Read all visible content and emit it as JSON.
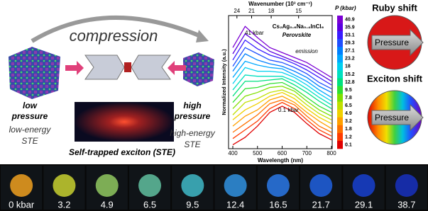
{
  "left": {
    "title": "compression",
    "low": [
      "low",
      "pressure"
    ],
    "low_ste": [
      "low-energy",
      "STE"
    ],
    "high": [
      "high",
      "pressure"
    ],
    "high_ste": [
      "high-energy",
      "STE"
    ],
    "ste_caption": "Self-trapped exciton (STE)"
  },
  "chart_data": {
    "type": "line",
    "xlabel": "Wavelength (nm)",
    "ylabel": "Normalized Intensity (a.u.)",
    "x2label": "Wavenumber (10³ cm⁻¹)",
    "colorbar_title": "P (kbar)",
    "annotations": [
      "41 kbar",
      "0.1 kbar",
      "Cs₂Ag₀.₆Na₀.₄InCl₆",
      "Perovskite",
      "emission"
    ],
    "x": [
      400,
      450,
      500,
      550,
      600,
      650,
      700,
      750,
      800
    ],
    "xlim": [
      400,
      820
    ],
    "xticks": [
      400,
      500,
      600,
      700,
      800
    ],
    "x2ticks": [
      24,
      21,
      18,
      15
    ],
    "ylim": [
      0,
      1
    ],
    "series": [
      {
        "name": "40.9",
        "color": "#7b00d4",
        "values": [
          0.8,
          0.97,
          0.88,
          0.8,
          0.76,
          0.72,
          0.68,
          0.62,
          0.56
        ]
      },
      {
        "name": "35.9",
        "color": "#5a00e0",
        "values": [
          0.75,
          0.91,
          0.84,
          0.77,
          0.73,
          0.69,
          0.65,
          0.59,
          0.53
        ]
      },
      {
        "name": "33.1",
        "color": "#3a1cff",
        "values": [
          0.7,
          0.86,
          0.79,
          0.74,
          0.71,
          0.67,
          0.62,
          0.56,
          0.5
        ]
      },
      {
        "name": "29.3",
        "color": "#1f4fff",
        "values": [
          0.65,
          0.8,
          0.75,
          0.7,
          0.68,
          0.64,
          0.59,
          0.52,
          0.47
        ]
      },
      {
        "name": "27.1",
        "color": "#0080ff",
        "values": [
          0.61,
          0.75,
          0.7,
          0.67,
          0.65,
          0.61,
          0.56,
          0.49,
          0.44
        ]
      },
      {
        "name": "23.2",
        "color": "#00a8ff",
        "values": [
          0.56,
          0.69,
          0.66,
          0.64,
          0.63,
          0.58,
          0.53,
          0.46,
          0.4
        ]
      },
      {
        "name": "18",
        "color": "#00d0f0",
        "values": [
          0.51,
          0.64,
          0.61,
          0.61,
          0.6,
          0.56,
          0.5,
          0.43,
          0.37
        ]
      },
      {
        "name": "15.2",
        "color": "#00e0c0",
        "values": [
          0.46,
          0.58,
          0.57,
          0.57,
          0.57,
          0.53,
          0.47,
          0.4,
          0.34
        ]
      },
      {
        "name": "12.8",
        "color": "#00e080",
        "values": [
          0.41,
          0.53,
          0.53,
          0.54,
          0.55,
          0.5,
          0.44,
          0.37,
          0.31
        ]
      },
      {
        "name": "9.5",
        "color": "#30e030",
        "values": [
          0.36,
          0.47,
          0.48,
          0.51,
          0.52,
          0.47,
          0.4,
          0.33,
          0.28
        ]
      },
      {
        "name": "7.8",
        "color": "#80e000",
        "values": [
          0.31,
          0.41,
          0.44,
          0.48,
          0.49,
          0.45,
          0.37,
          0.3,
          0.25
        ]
      },
      {
        "name": "6.5",
        "color": "#c0e000",
        "values": [
          0.26,
          0.36,
          0.39,
          0.44,
          0.46,
          0.42,
          0.34,
          0.27,
          0.22
        ]
      },
      {
        "name": "4.9",
        "color": "#f0d000",
        "values": [
          0.22,
          0.3,
          0.35,
          0.41,
          0.44,
          0.39,
          0.31,
          0.24,
          0.19
        ]
      },
      {
        "name": "3.2",
        "color": "#ffa000",
        "values": [
          0.17,
          0.25,
          0.3,
          0.38,
          0.41,
          0.36,
          0.28,
          0.21,
          0.15
        ]
      },
      {
        "name": "1.8",
        "color": "#ff7000",
        "values": [
          0.12,
          0.19,
          0.26,
          0.35,
          0.38,
          0.34,
          0.25,
          0.17,
          0.12
        ]
      },
      {
        "name": "1.2",
        "color": "#ff3c00",
        "values": [
          0.07,
          0.14,
          0.21,
          0.31,
          0.36,
          0.31,
          0.22,
          0.14,
          0.09
        ]
      },
      {
        "name": "0.1",
        "color": "#e00000",
        "values": [
          0.02,
          0.08,
          0.17,
          0.28,
          0.33,
          0.28,
          0.19,
          0.11,
          0.06
        ]
      }
    ]
  },
  "right": {
    "ruby": "Ruby shift",
    "exciton": "Exciton shift",
    "arrow": "Pressure"
  },
  "photos": [
    {
      "label": "0 kbar",
      "color": "#f0a020"
    },
    {
      "label": "3.2",
      "color": "#c8d030"
    },
    {
      "label": "4.9",
      "color": "#90c860"
    },
    {
      "label": "6.5",
      "color": "#60c0a0"
    },
    {
      "label": "9.5",
      "color": "#40b8c8"
    },
    {
      "label": "12.4",
      "color": "#3090e0"
    },
    {
      "label": "16.5",
      "color": "#2a78e8"
    },
    {
      "label": "21.7",
      "color": "#2060e0"
    },
    {
      "label": "29.1",
      "color": "#1840d0"
    },
    {
      "label": "38.7",
      "color": "#1830c0"
    }
  ]
}
